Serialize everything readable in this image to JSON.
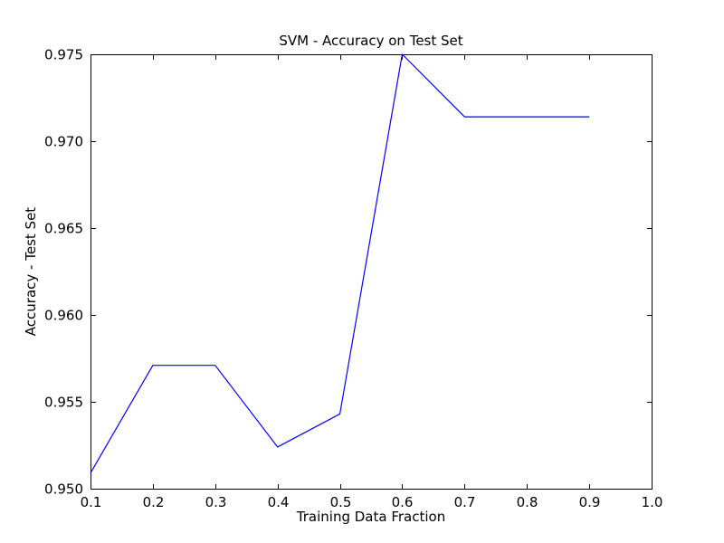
{
  "chart_data": {
    "type": "line",
    "title": "SVM - Accuracy on Test Set",
    "xlabel": "Training Data Fraction",
    "ylabel": "Accuracy - Test Set",
    "x": [
      0.1,
      0.2,
      0.3,
      0.4,
      0.5,
      0.6,
      0.7,
      0.8,
      0.9
    ],
    "y": [
      0.9509,
      0.9571,
      0.9571,
      0.9524,
      0.9543,
      0.975,
      0.9714,
      0.9714,
      0.9714
    ],
    "xlim": [
      0.1,
      1.0
    ],
    "ylim": [
      0.95,
      0.975
    ],
    "xticks": [
      "0.1",
      "0.2",
      "0.3",
      "0.4",
      "0.5",
      "0.6",
      "0.7",
      "0.8",
      "0.9",
      "1.0"
    ],
    "yticks": [
      "0.950",
      "0.955",
      "0.960",
      "0.965",
      "0.970",
      "0.975"
    ],
    "line_color": "#0000ff",
    "axis_color": "#000000",
    "grid": false,
    "legend_position": "none"
  }
}
